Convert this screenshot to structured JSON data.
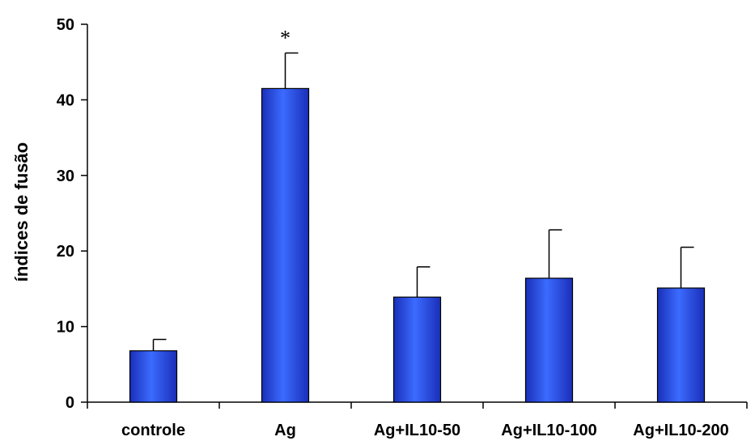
{
  "chart_data": {
    "type": "bar",
    "title": "",
    "xlabel": "",
    "ylabel": "índices de fusão",
    "ylim": [
      0,
      50
    ],
    "yticks": [
      0,
      10,
      20,
      30,
      40,
      50
    ],
    "grid": false,
    "legend": "none",
    "categories": [
      "controle",
      "Ag",
      "Ag+IL10-50",
      "Ag+IL10-100",
      "Ag+IL10-200"
    ],
    "series": [
      {
        "values": [
          6.8,
          41.5,
          13.9,
          16.4,
          15.1
        ],
        "error_upper": [
          1.5,
          4.7,
          4.0,
          6.4,
          5.4
        ]
      }
    ],
    "annotations": [
      {
        "category": "Ag",
        "text": "*"
      }
    ],
    "colors": {
      "bar_light": "#3b6bff",
      "bar_dark": "#1a2fb8",
      "axis": "#000000"
    }
  }
}
